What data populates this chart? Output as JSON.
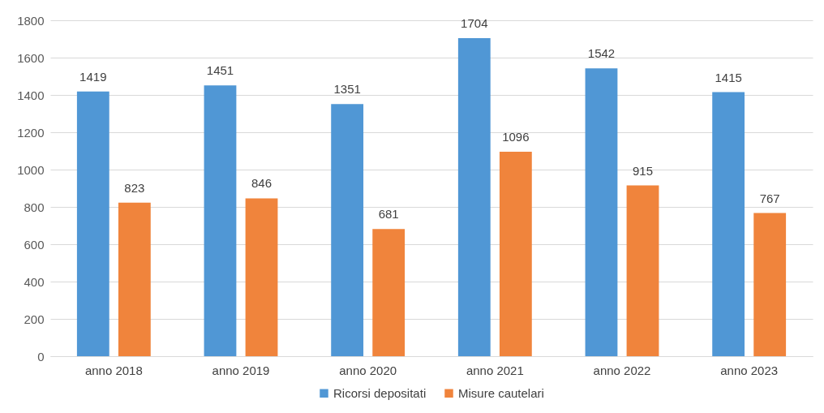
{
  "chart_data": {
    "type": "bar",
    "categories": [
      "anno 2018",
      "anno 2019",
      "anno 2020",
      "anno 2021",
      "anno 2022",
      "anno 2023"
    ],
    "series": [
      {
        "name": "Ricorsi depositati",
        "color": "#5097d5",
        "values": [
          1419,
          1451,
          1351,
          1704,
          1542,
          1415
        ]
      },
      {
        "name": "Misure cautelari",
        "color": "#f0843c",
        "values": [
          823,
          846,
          681,
          1096,
          915,
          767
        ]
      }
    ],
    "ylim": [
      0,
      1800
    ],
    "yticks": [
      0,
      200,
      400,
      600,
      800,
      1000,
      1200,
      1400,
      1600,
      1800
    ],
    "grid": "y",
    "legend": "bottom",
    "data_labels": true
  }
}
